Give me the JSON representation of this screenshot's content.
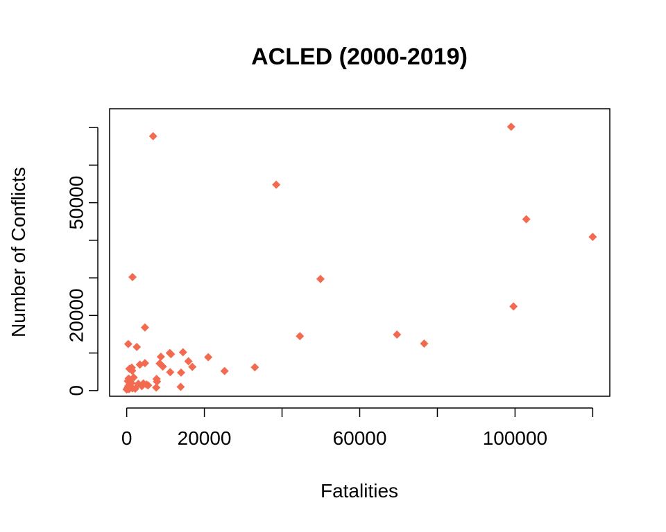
{
  "chart_data": {
    "type": "scatter",
    "title": "ACLED (2000-2019)",
    "xlabel": "Fatalities",
    "ylabel": "Number of Conflicts",
    "xlim": [
      -4400,
      124400
    ],
    "ylim": [
      -1500,
      75000
    ],
    "x_ticks": [
      0,
      20000,
      40000,
      60000,
      80000,
      100000,
      120000
    ],
    "x_tick_labels": [
      "0",
      "20000",
      "",
      "60000",
      "",
      "100000",
      ""
    ],
    "y_ticks": [
      0,
      10000,
      20000,
      30000,
      40000,
      50000,
      60000,
      70000
    ],
    "y_tick_labels": [
      "0",
      "",
      "20000",
      "",
      "",
      "50000",
      "",
      ""
    ],
    "grid": false,
    "legend": "none",
    "marker": "diamond",
    "color": "#f26a4f",
    "points": [
      {
        "x": 0,
        "y": 300
      },
      {
        "x": 200,
        "y": 700
      },
      {
        "x": 400,
        "y": 1200
      },
      {
        "x": 600,
        "y": 400
      },
      {
        "x": 800,
        "y": 1800
      },
      {
        "x": 300,
        "y": 2500
      },
      {
        "x": 500,
        "y": 3200
      },
      {
        "x": 1000,
        "y": 900
      },
      {
        "x": 1200,
        "y": 2000
      },
      {
        "x": 1500,
        "y": 600
      },
      {
        "x": 700,
        "y": 5800
      },
      {
        "x": 1300,
        "y": 6100
      },
      {
        "x": 400,
        "y": 12400
      },
      {
        "x": 1400,
        "y": 5300
      },
      {
        "x": 1800,
        "y": 3500
      },
      {
        "x": 2200,
        "y": 500
      },
      {
        "x": 2600,
        "y": 11600
      },
      {
        "x": 3000,
        "y": 1800
      },
      {
        "x": 3400,
        "y": 6900
      },
      {
        "x": 3900,
        "y": 1200
      },
      {
        "x": 4300,
        "y": 1900
      },
      {
        "x": 4700,
        "y": 7300
      },
      {
        "x": 5100,
        "y": 1600
      },
      {
        "x": 5500,
        "y": 1400
      },
      {
        "x": 4700,
        "y": 16800
      },
      {
        "x": 1500,
        "y": 30200
      },
      {
        "x": 7700,
        "y": 3100
      },
      {
        "x": 7800,
        "y": 2400
      },
      {
        "x": 7600,
        "y": 800
      },
      {
        "x": 8500,
        "y": 7200
      },
      {
        "x": 8800,
        "y": 9000
      },
      {
        "x": 9300,
        "y": 6400
      },
      {
        "x": 11100,
        "y": 10000
      },
      {
        "x": 11400,
        "y": 9700
      },
      {
        "x": 11200,
        "y": 4900
      },
      {
        "x": 13900,
        "y": 1000
      },
      {
        "x": 14000,
        "y": 4800
      },
      {
        "x": 14500,
        "y": 10200
      },
      {
        "x": 15900,
        "y": 7800
      },
      {
        "x": 16900,
        "y": 6300
      },
      {
        "x": 21000,
        "y": 8900
      },
      {
        "x": 25200,
        "y": 5200
      },
      {
        "x": 33000,
        "y": 6200
      },
      {
        "x": 6800,
        "y": 67700
      },
      {
        "x": 38500,
        "y": 54800
      },
      {
        "x": 44600,
        "y": 14500
      },
      {
        "x": 49900,
        "y": 29700
      },
      {
        "x": 69600,
        "y": 14900
      },
      {
        "x": 76600,
        "y": 12500
      },
      {
        "x": 99600,
        "y": 22400
      },
      {
        "x": 99000,
        "y": 70200
      },
      {
        "x": 102900,
        "y": 45600
      },
      {
        "x": 120000,
        "y": 40900
      }
    ]
  }
}
